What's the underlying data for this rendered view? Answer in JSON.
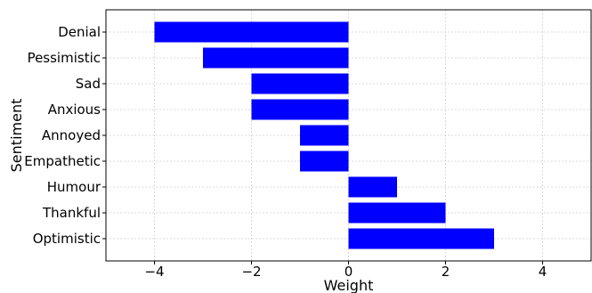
{
  "chart_data": {
    "type": "bar",
    "orientation": "horizontal",
    "categories": [
      "Denial",
      "Pessimistic",
      "Sad",
      "Anxious",
      "Annoyed",
      "Empathetic",
      "Humour",
      "Thankful",
      "Optimistic"
    ],
    "values": [
      -4,
      -3,
      -2,
      -2,
      -1,
      -1,
      1,
      2,
      3
    ],
    "bar_color": "#0000ff",
    "xlabel": "Weight",
    "ylabel": "Sentiment",
    "xlim": [
      -5,
      5
    ],
    "xticks": [
      -4,
      -2,
      0,
      2,
      4
    ],
    "xtick_labels": [
      "−4",
      "−2",
      "0",
      "2",
      "4"
    ],
    "grid": true
  }
}
